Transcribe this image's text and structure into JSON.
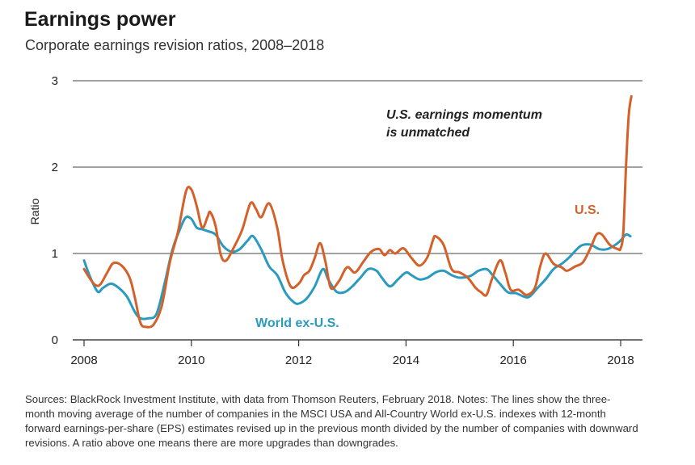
{
  "header": {
    "title": "Earnings power",
    "subtitle": "Corporate earnings revision ratios, 2008–2018"
  },
  "footnote": "Sources: BlackRock Investment Institute, with data from Thomson Reuters, February 2018. Notes: The lines show the three-month moving average of the number of companies in the MSCI USA and All-Country World ex-U.S. indexes with 12-month forward earnings-per-share (EPS) estimates revised up in the previous month divided by the number of companies with downward revisions. A ratio above one means there are more upgrades than downgrades.",
  "colors": {
    "us": "#d4602a",
    "world": "#2a9bbf",
    "grid": "#444444",
    "axis": "#333333"
  },
  "chart_data": {
    "type": "line",
    "ylabel": "Ratio",
    "xlabel": "",
    "xlim": [
      2008,
      2018.3
    ],
    "ylim": [
      0,
      3
    ],
    "x_ticks": [
      2008,
      2010,
      2012,
      2014,
      2016,
      2018
    ],
    "y_ticks": [
      0,
      1,
      2,
      3
    ],
    "grid": "horizontal",
    "annotation": {
      "line1": "U.S. earnings momentum",
      "line2": "is unmatched"
    },
    "series": [
      {
        "name": "U.S.",
        "points": [
          [
            2008.0,
            0.82
          ],
          [
            2008.1,
            0.72
          ],
          [
            2008.2,
            0.64
          ],
          [
            2008.3,
            0.64
          ],
          [
            2008.45,
            0.8
          ],
          [
            2008.55,
            0.89
          ],
          [
            2008.7,
            0.86
          ],
          [
            2008.85,
            0.72
          ],
          [
            2008.95,
            0.48
          ],
          [
            2009.05,
            0.2
          ],
          [
            2009.15,
            0.15
          ],
          [
            2009.3,
            0.18
          ],
          [
            2009.45,
            0.4
          ],
          [
            2009.6,
            0.9
          ],
          [
            2009.75,
            1.25
          ],
          [
            2009.9,
            1.72
          ],
          [
            2010.0,
            1.74
          ],
          [
            2010.1,
            1.55
          ],
          [
            2010.2,
            1.3
          ],
          [
            2010.3,
            1.42
          ],
          [
            2010.35,
            1.48
          ],
          [
            2010.45,
            1.32
          ],
          [
            2010.55,
            0.98
          ],
          [
            2010.65,
            0.92
          ],
          [
            2010.8,
            1.08
          ],
          [
            2010.95,
            1.28
          ],
          [
            2011.1,
            1.58
          ],
          [
            2011.2,
            1.52
          ],
          [
            2011.3,
            1.42
          ],
          [
            2011.45,
            1.58
          ],
          [
            2011.6,
            1.3
          ],
          [
            2011.7,
            0.92
          ],
          [
            2011.85,
            0.62
          ],
          [
            2012.0,
            0.65
          ],
          [
            2012.1,
            0.75
          ],
          [
            2012.2,
            0.8
          ],
          [
            2012.3,
            0.95
          ],
          [
            2012.4,
            1.12
          ],
          [
            2012.5,
            0.9
          ],
          [
            2012.6,
            0.6
          ],
          [
            2012.75,
            0.68
          ],
          [
            2012.9,
            0.84
          ],
          [
            2013.05,
            0.78
          ],
          [
            2013.2,
            0.9
          ],
          [
            2013.35,
            1.02
          ],
          [
            2013.5,
            1.05
          ],
          [
            2013.6,
            0.98
          ],
          [
            2013.7,
            1.04
          ],
          [
            2013.8,
            1.0
          ],
          [
            2013.95,
            1.06
          ],
          [
            2014.1,
            0.95
          ],
          [
            2014.25,
            0.86
          ],
          [
            2014.4,
            0.96
          ],
          [
            2014.5,
            1.15
          ],
          [
            2014.55,
            1.2
          ],
          [
            2014.7,
            1.1
          ],
          [
            2014.85,
            0.82
          ],
          [
            2015.0,
            0.78
          ],
          [
            2015.15,
            0.72
          ],
          [
            2015.3,
            0.6
          ],
          [
            2015.4,
            0.55
          ],
          [
            2015.5,
            0.52
          ],
          [
            2015.6,
            0.7
          ],
          [
            2015.75,
            0.92
          ],
          [
            2015.85,
            0.78
          ],
          [
            2015.95,
            0.58
          ],
          [
            2016.1,
            0.58
          ],
          [
            2016.25,
            0.52
          ],
          [
            2016.4,
            0.6
          ],
          [
            2016.5,
            0.85
          ],
          [
            2016.6,
            1.0
          ],
          [
            2016.75,
            0.88
          ],
          [
            2016.9,
            0.84
          ],
          [
            2017.0,
            0.8
          ],
          [
            2017.15,
            0.85
          ],
          [
            2017.3,
            0.9
          ],
          [
            2017.45,
            1.08
          ],
          [
            2017.55,
            1.22
          ],
          [
            2017.65,
            1.22
          ],
          [
            2017.8,
            1.1
          ],
          [
            2017.95,
            1.05
          ],
          [
            2018.0,
            1.06
          ],
          [
            2018.05,
            1.25
          ],
          [
            2018.1,
            2.0
          ],
          [
            2018.15,
            2.6
          ],
          [
            2018.2,
            2.82
          ]
        ]
      },
      {
        "name": "World ex-U.S.",
        "points": [
          [
            2008.0,
            0.92
          ],
          [
            2008.1,
            0.75
          ],
          [
            2008.25,
            0.56
          ],
          [
            2008.35,
            0.6
          ],
          [
            2008.5,
            0.65
          ],
          [
            2008.65,
            0.6
          ],
          [
            2008.8,
            0.5
          ],
          [
            2008.95,
            0.32
          ],
          [
            2009.05,
            0.25
          ],
          [
            2009.2,
            0.25
          ],
          [
            2009.35,
            0.3
          ],
          [
            2009.5,
            0.65
          ],
          [
            2009.65,
            1.05
          ],
          [
            2009.8,
            1.3
          ],
          [
            2009.9,
            1.42
          ],
          [
            2010.0,
            1.4
          ],
          [
            2010.1,
            1.3
          ],
          [
            2010.2,
            1.28
          ],
          [
            2010.3,
            1.26
          ],
          [
            2010.45,
            1.22
          ],
          [
            2010.6,
            1.08
          ],
          [
            2010.75,
            1.02
          ],
          [
            2010.9,
            1.05
          ],
          [
            2011.05,
            1.15
          ],
          [
            2011.15,
            1.2
          ],
          [
            2011.3,
            1.05
          ],
          [
            2011.45,
            0.85
          ],
          [
            2011.6,
            0.75
          ],
          [
            2011.75,
            0.55
          ],
          [
            2011.9,
            0.44
          ],
          [
            2012.0,
            0.42
          ],
          [
            2012.15,
            0.48
          ],
          [
            2012.3,
            0.62
          ],
          [
            2012.45,
            0.82
          ],
          [
            2012.55,
            0.7
          ],
          [
            2012.7,
            0.56
          ],
          [
            2012.85,
            0.55
          ],
          [
            2013.0,
            0.62
          ],
          [
            2013.15,
            0.72
          ],
          [
            2013.3,
            0.82
          ],
          [
            2013.45,
            0.8
          ],
          [
            2013.55,
            0.72
          ],
          [
            2013.7,
            0.62
          ],
          [
            2013.85,
            0.7
          ],
          [
            2014.0,
            0.78
          ],
          [
            2014.1,
            0.75
          ],
          [
            2014.25,
            0.7
          ],
          [
            2014.4,
            0.72
          ],
          [
            2014.55,
            0.78
          ],
          [
            2014.7,
            0.8
          ],
          [
            2014.85,
            0.75
          ],
          [
            2015.0,
            0.72
          ],
          [
            2015.2,
            0.74
          ],
          [
            2015.35,
            0.8
          ],
          [
            2015.5,
            0.82
          ],
          [
            2015.6,
            0.76
          ],
          [
            2015.75,
            0.65
          ],
          [
            2015.9,
            0.55
          ],
          [
            2016.05,
            0.54
          ],
          [
            2016.2,
            0.5
          ],
          [
            2016.3,
            0.5
          ],
          [
            2016.45,
            0.6
          ],
          [
            2016.6,
            0.7
          ],
          [
            2016.75,
            0.82
          ],
          [
            2016.9,
            0.88
          ],
          [
            2017.05,
            0.96
          ],
          [
            2017.2,
            1.06
          ],
          [
            2017.3,
            1.1
          ],
          [
            2017.45,
            1.1
          ],
          [
            2017.6,
            1.05
          ],
          [
            2017.75,
            1.05
          ],
          [
            2017.9,
            1.1
          ],
          [
            2018.0,
            1.15
          ],
          [
            2018.1,
            1.22
          ],
          [
            2018.18,
            1.2
          ]
        ]
      }
    ],
    "series_labels": {
      "us": "U.S.",
      "world": "World ex-U.S."
    }
  }
}
